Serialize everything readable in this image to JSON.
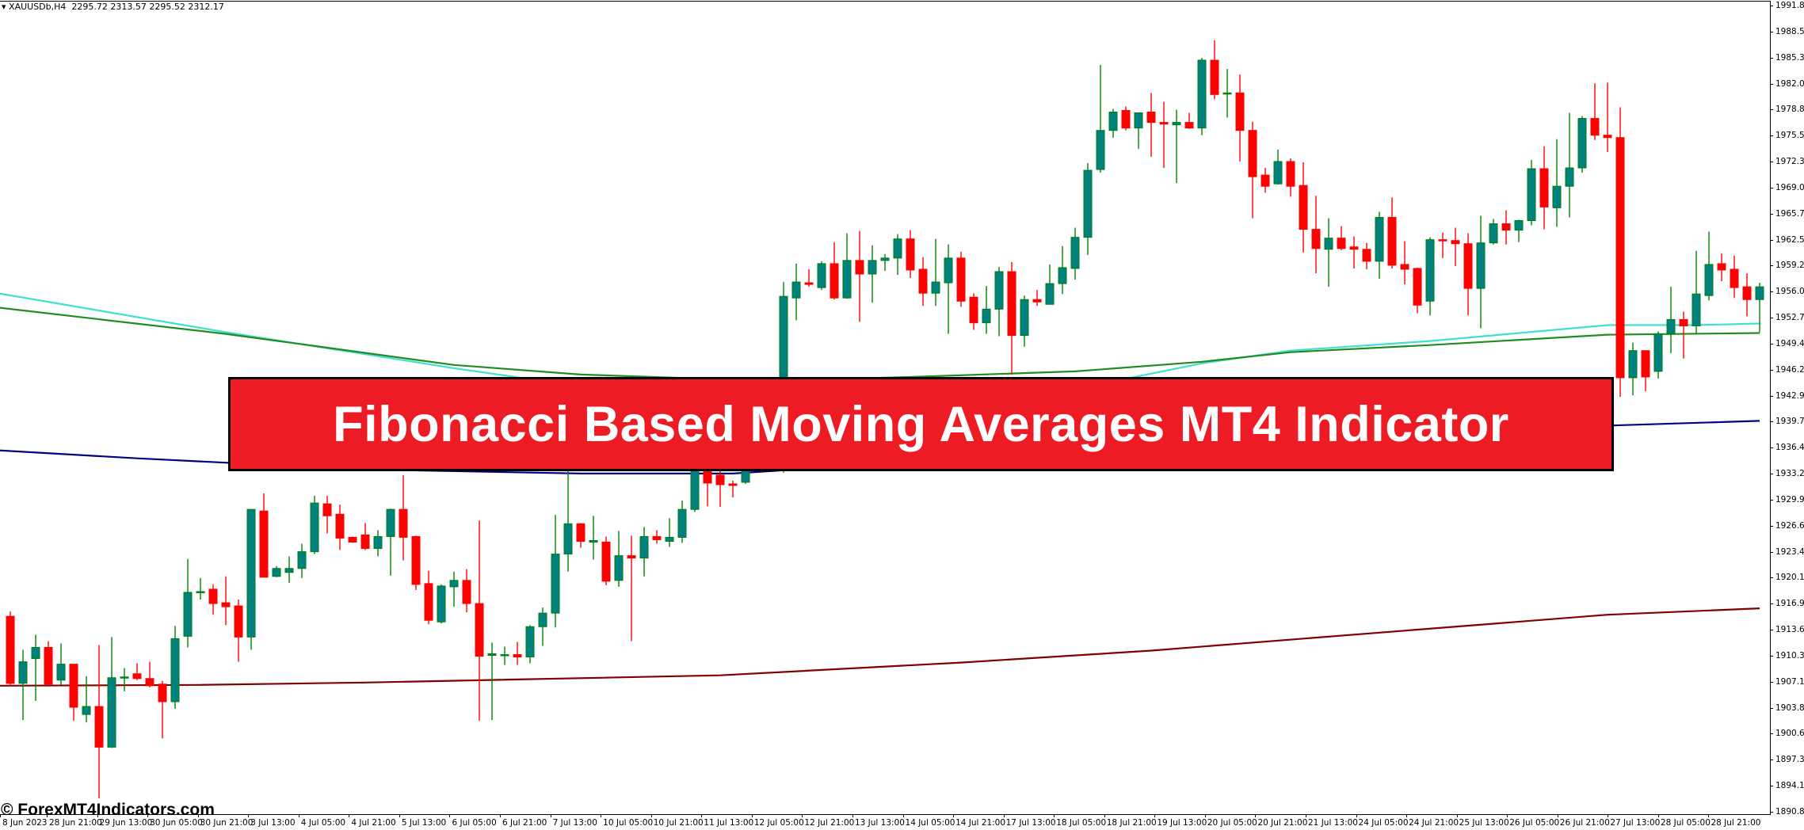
{
  "header": {
    "symbol_menu_icon": "triangle-down-icon",
    "symbol": "XAUUSDb,H4",
    "ohlc": "2295.72 2313.57 2295.52 2312.17"
  },
  "banner": {
    "title": "Fibonacci Based Moving Averages MT4 Indicator"
  },
  "watermark": "© ForexMT4Indicators.com",
  "colors": {
    "background": "#FFFFFF",
    "bull_body": "#008080",
    "bull_outline": "#008000",
    "bear_body": "#FF0000",
    "banner": "#ED1C24"
  },
  "price_axis": [
    "1991.85",
    "1988.55",
    "1985.30",
    "1982.05",
    "1978.80",
    "1975.55",
    "1972.30",
    "1969.00",
    "1965.75",
    "1962.50",
    "1959.25",
    "1956.00",
    "1952.75",
    "1949.45",
    "1946.20",
    "1942.95",
    "1939.70",
    "1936.45",
    "1933.20",
    "1929.90",
    "1926.65",
    "1923.40",
    "1920.15",
    "1916.90",
    "1913.65",
    "1910.35",
    "1907.10",
    "1903.85",
    "1900.60",
    "1897.35",
    "1894.10",
    "1890.80"
  ],
  "time_axis": [
    "8 Jun 2023",
    "28 Jun 21:00",
    "29 Jun 13:00",
    "30 Jun 05:00",
    "30 Jun 21:00",
    "3 Jul 13:00",
    "4 Jul 05:00",
    "4 Jul 21:00",
    "5 Jul 13:00",
    "6 Jul 05:00",
    "6 Jul 21:00",
    "7 Jul 13:00",
    "10 Jul 05:00",
    "10 Jul 21:00",
    "11 Jul 13:00",
    "12 Jul 05:00",
    "12 Jul 21:00",
    "13 Jul 13:00",
    "14 Jul 05:00",
    "14 Jul 21:00",
    "17 Jul 13:00",
    "18 Jul 05:00",
    "18 Jul 21:00",
    "19 Jul 13:00",
    "20 Jul 05:00",
    "20 Jul 21:00",
    "21 Jul 13:00",
    "24 Jul 05:00",
    "24 Jul 21:00",
    "25 Jul 13:00",
    "26 Jul 05:00",
    "26 Jul 21:00",
    "27 Jul 13:00",
    "28 Jul 05:00",
    "28 Jul 21:00"
  ],
  "chart_data": {
    "type": "candlestick",
    "ylim": [
      1890.8,
      1991.85
    ],
    "ohlc_order": [
      "open",
      "high",
      "low",
      "close"
    ],
    "candles": [
      [
        1915.3,
        1915.9,
        1906.6,
        1906.9
      ],
      [
        1906.9,
        1911.1,
        1902.3,
        1909.6
      ],
      [
        1910.0,
        1913.0,
        1904.7,
        1911.4
      ],
      [
        1911.4,
        1912.2,
        1906.5,
        1906.8
      ],
      [
        1907.3,
        1911.9,
        1906.7,
        1909.3
      ],
      [
        1909.3,
        1909.3,
        1902.2,
        1903.9
      ],
      [
        1903.0,
        1907.8,
        1902.0,
        1904.0
      ],
      [
        1904.0,
        1911.7,
        1892.5,
        1898.9
      ],
      [
        1898.9,
        1912.7,
        1898.8,
        1907.6
      ],
      [
        1907.6,
        1908.8,
        1905.9,
        1907.7
      ],
      [
        1908.1,
        1909.4,
        1907.3,
        1907.5
      ],
      [
        1907.5,
        1909.6,
        1906.4,
        1906.6
      ],
      [
        1906.8,
        1907.2,
        1900.0,
        1904.6
      ],
      [
        1904.6,
        1914.1,
        1903.7,
        1912.5
      ],
      [
        1912.8,
        1922.5,
        1911.4,
        1918.3
      ],
      [
        1918.3,
        1920.1,
        1917.4,
        1918.4
      ],
      [
        1918.7,
        1919.3,
        1915.5,
        1916.9
      ],
      [
        1917.0,
        1920.3,
        1914.2,
        1916.5
      ],
      [
        1916.6,
        1917.4,
        1909.6,
        1912.7
      ],
      [
        1912.7,
        1928.7,
        1911.1,
        1928.7
      ],
      [
        1928.5,
        1930.7,
        1920.2,
        1920.2
      ],
      [
        1920.3,
        1921.6,
        1920.2,
        1921.3
      ],
      [
        1920.8,
        1922.8,
        1919.5,
        1921.3
      ],
      [
        1921.3,
        1924.4,
        1920.1,
        1923.4
      ],
      [
        1923.4,
        1930.4,
        1923.1,
        1929.5
      ],
      [
        1929.4,
        1930.4,
        1925.7,
        1927.9
      ],
      [
        1928.1,
        1929.3,
        1923.6,
        1925.1
      ],
      [
        1925.2,
        1925.3,
        1924.5,
        1924.6
      ],
      [
        1925.5,
        1927.0,
        1923.6,
        1923.8
      ],
      [
        1923.8,
        1926.1,
        1922.8,
        1925.3
      ],
      [
        1925.3,
        1928.8,
        1920.4,
        1928.7
      ],
      [
        1928.7,
        1933.0,
        1922.3,
        1925.2
      ],
      [
        1925.3,
        1925.4,
        1918.6,
        1919.3
      ],
      [
        1919.4,
        1921.0,
        1914.3,
        1914.8
      ],
      [
        1914.6,
        1919.3,
        1914.4,
        1919.1
      ],
      [
        1919.0,
        1920.9,
        1916.5,
        1919.8
      ],
      [
        1919.8,
        1921.2,
        1915.8,
        1916.9
      ],
      [
        1916.9,
        1927.3,
        1902.2,
        1910.3
      ],
      [
        1910.4,
        1912.0,
        1902.3,
        1910.6
      ],
      [
        1910.4,
        1911.5,
        1909.2,
        1910.5
      ],
      [
        1910.5,
        1912.1,
        1909.2,
        1910.2
      ],
      [
        1910.2,
        1914.2,
        1909.4,
        1914.0
      ],
      [
        1914.0,
        1916.4,
        1911.6,
        1915.7
      ],
      [
        1915.7,
        1928.0,
        1913.9,
        1923.1
      ],
      [
        1923.1,
        1933.5,
        1920.9,
        1926.9
      ],
      [
        1926.9,
        1927.0,
        1923.9,
        1924.7
      ],
      [
        1924.6,
        1927.9,
        1922.4,
        1924.8
      ],
      [
        1924.6,
        1925.3,
        1919.2,
        1919.7
      ],
      [
        1919.8,
        1926.0,
        1919.0,
        1922.9
      ],
      [
        1922.9,
        1925.4,
        1912.2,
        1922.6
      ],
      [
        1922.6,
        1926.5,
        1920.3,
        1925.3
      ],
      [
        1925.3,
        1926.1,
        1924.4,
        1924.9
      ],
      [
        1924.7,
        1927.6,
        1924.0,
        1925.2
      ],
      [
        1925.2,
        1929.8,
        1924.5,
        1928.7
      ],
      [
        1928.7,
        1935.5,
        1928.4,
        1934.9
      ],
      [
        1933.5,
        1935.0,
        1929.1,
        1932.0
      ],
      [
        1933.0,
        1933.5,
        1929.0,
        1931.8
      ],
      [
        1931.9,
        1932.3,
        1930.2,
        1931.7
      ],
      [
        1932.1,
        1934.5,
        1931.9,
        1934.0
      ],
      [
        1934.0,
        1936.5,
        1933.5,
        1935.5
      ],
      [
        1935.5,
        1936.0,
        1933.5,
        1935.0
      ],
      [
        1935.0,
        1957.2,
        1933.3,
        1955.4
      ],
      [
        1955.2,
        1959.5,
        1952.4,
        1957.2
      ],
      [
        1957.1,
        1958.8,
        1956.6,
        1956.9
      ],
      [
        1956.5,
        1959.8,
        1956.2,
        1959.5
      ],
      [
        1959.5,
        1962.2,
        1955.0,
        1955.2
      ],
      [
        1955.2,
        1963.3,
        1955.1,
        1959.9
      ],
      [
        1959.9,
        1963.6,
        1952.2,
        1958.2
      ],
      [
        1958.2,
        1961.8,
        1954.6,
        1959.9
      ],
      [
        1959.9,
        1960.7,
        1958.6,
        1960.2
      ],
      [
        1960.2,
        1963.2,
        1958.1,
        1962.6
      ],
      [
        1962.6,
        1963.7,
        1957.7,
        1958.7
      ],
      [
        1958.8,
        1960.3,
        1954.2,
        1955.8
      ],
      [
        1955.8,
        1962.6,
        1954.2,
        1957.2
      ],
      [
        1957.1,
        1961.9,
        1950.7,
        1960.2
      ],
      [
        1960.2,
        1961.0,
        1954.1,
        1954.8
      ],
      [
        1955.3,
        1955.8,
        1951.2,
        1952.1
      ],
      [
        1952.1,
        1956.7,
        1950.7,
        1953.8
      ],
      [
        1953.8,
        1959.1,
        1950.4,
        1958.5
      ],
      [
        1958.5,
        1959.7,
        1945.6,
        1950.5
      ],
      [
        1950.5,
        1955.5,
        1949.1,
        1955.0
      ],
      [
        1955.0,
        1956.2,
        1954.2,
        1954.7
      ],
      [
        1954.4,
        1959.4,
        1954.4,
        1957.0
      ],
      [
        1957.0,
        1961.7,
        1955.7,
        1959.0
      ],
      [
        1958.9,
        1964.0,
        1957.5,
        1962.8
      ],
      [
        1962.8,
        1972.1,
        1960.6,
        1971.2
      ],
      [
        1971.3,
        1984.4,
        1970.9,
        1976.2
      ],
      [
        1976.2,
        1978.9,
        1975.3,
        1978.5
      ],
      [
        1978.7,
        1979.2,
        1976.2,
        1976.5
      ],
      [
        1976.5,
        1978.4,
        1973.9,
        1978.4
      ],
      [
        1978.5,
        1980.9,
        1972.9,
        1977.2
      ],
      [
        1977.2,
        1979.8,
        1971.5,
        1977.0
      ],
      [
        1976.9,
        1978.8,
        1969.6,
        1977.2
      ],
      [
        1977.2,
        1978.4,
        1976.4,
        1976.5
      ],
      [
        1976.5,
        1985.3,
        1975.6,
        1985.0
      ],
      [
        1985.0,
        1987.5,
        1980.1,
        1980.7
      ],
      [
        1980.8,
        1983.9,
        1977.8,
        1980.9
      ],
      [
        1980.9,
        1983.2,
        1972.3,
        1976.2
      ],
      [
        1976.2,
        1977.3,
        1965.2,
        1970.4
      ],
      [
        1970.6,
        1971.5,
        1968.4,
        1969.2
      ],
      [
        1969.5,
        1973.8,
        1969.4,
        1972.3
      ],
      [
        1972.3,
        1972.7,
        1967.9,
        1969.2
      ],
      [
        1969.3,
        1972.2,
        1960.9,
        1963.8
      ],
      [
        1963.8,
        1968.0,
        1958.3,
        1961.4
      ],
      [
        1961.3,
        1965.2,
        1956.6,
        1962.7
      ],
      [
        1962.7,
        1964.2,
        1961.2,
        1961.4
      ],
      [
        1961.6,
        1962.9,
        1958.9,
        1961.3
      ],
      [
        1961.3,
        1962.1,
        1958.8,
        1959.8
      ],
      [
        1959.8,
        1966.0,
        1957.6,
        1965.3
      ],
      [
        1965.3,
        1967.8,
        1958.9,
        1959.3
      ],
      [
        1959.4,
        1962.3,
        1956.9,
        1958.8
      ],
      [
        1958.9,
        1959.0,
        1953.3,
        1954.3
      ],
      [
        1954.8,
        1962.8,
        1953.0,
        1962.5
      ],
      [
        1962.5,
        1963.4,
        1960.2,
        1962.4
      ],
      [
        1962.4,
        1964.0,
        1959.2,
        1962.0
      ],
      [
        1962.0,
        1963.3,
        1953.0,
        1956.4
      ],
      [
        1956.4,
        1965.5,
        1951.4,
        1962.1
      ],
      [
        1962.1,
        1965.1,
        1961.9,
        1964.5
      ],
      [
        1964.5,
        1966.2,
        1961.9,
        1963.7
      ],
      [
        1963.7,
        1965.0,
        1962.2,
        1964.9
      ],
      [
        1964.9,
        1972.5,
        1964.3,
        1971.4
      ],
      [
        1971.4,
        1974.2,
        1963.8,
        1966.6
      ],
      [
        1966.5,
        1975.1,
        1964.1,
        1969.2
      ],
      [
        1969.2,
        1978.4,
        1965.3,
        1971.5
      ],
      [
        1971.5,
        1978.0,
        1970.9,
        1977.7
      ],
      [
        1977.7,
        1982.1,
        1975.0,
        1975.6
      ],
      [
        1975.6,
        1982.2,
        1973.5,
        1975.3
      ],
      [
        1975.3,
        1979.1,
        1942.8,
        1945.2
      ],
      [
        1945.2,
        1949.6,
        1943.0,
        1948.6
      ],
      [
        1948.6,
        1948.6,
        1943.5,
        1945.3
      ],
      [
        1946.0,
        1951.0,
        1945.1,
        1950.7
      ],
      [
        1950.7,
        1956.6,
        1948.3,
        1952.5
      ],
      [
        1952.5,
        1953.5,
        1947.6,
        1951.7
      ],
      [
        1951.7,
        1961.1,
        1950.8,
        1955.7
      ],
      [
        1955.5,
        1963.5,
        1954.9,
        1959.4
      ],
      [
        1959.5,
        1960.8,
        1957.3,
        1958.7
      ],
      [
        1958.8,
        1960.5,
        1955.2,
        1956.5
      ],
      [
        1956.6,
        1958.3,
        1952.9,
        1955.0
      ],
      [
        1955.0,
        1957.1,
        1950.9,
        1956.6
      ]
    ],
    "moving_averages": [
      {
        "color": "#40E0D0",
        "points": [
          [
            -1,
            1955.8
          ],
          [
            17,
            1950.9
          ],
          [
            35,
            1946.4
          ],
          [
            50,
            1943.0
          ],
          [
            65,
            1941.5
          ],
          [
            80,
            1942.5
          ],
          [
            94,
            1947.0
          ],
          [
            101,
            1948.6
          ],
          [
            112,
            1949.8
          ],
          [
            126,
            1951.8
          ],
          [
            133,
            1951.8
          ],
          [
            138,
            1952.0
          ]
        ]
      },
      {
        "color": "#228B22",
        "points": [
          [
            -1,
            1954.0
          ],
          [
            17,
            1950.7
          ],
          [
            35,
            1946.8
          ],
          [
            45,
            1945.6
          ],
          [
            60,
            1944.8
          ],
          [
            71,
            1945.3
          ],
          [
            84,
            1946.0
          ],
          [
            94,
            1947.2
          ],
          [
            101,
            1948.4
          ],
          [
            112,
            1949.3
          ],
          [
            126,
            1950.6
          ],
          [
            138,
            1950.8
          ]
        ]
      },
      {
        "color": "#000080",
        "points": [
          [
            -1,
            1936.1
          ],
          [
            10,
            1935.1
          ],
          [
            28,
            1933.7
          ],
          [
            45,
            1933.2
          ],
          [
            57,
            1933.2
          ],
          [
            65,
            1934.0
          ],
          [
            90,
            1936.5
          ],
          [
            110,
            1938.3
          ],
          [
            126,
            1939.2
          ],
          [
            138,
            1939.8
          ]
        ]
      },
      {
        "color": "#800000",
        "points": [
          [
            -1,
            1906.6
          ],
          [
            15,
            1906.7
          ],
          [
            28,
            1907.0
          ],
          [
            56,
            1907.9
          ],
          [
            75,
            1909.5
          ],
          [
            90,
            1911.0
          ],
          [
            110,
            1913.5
          ],
          [
            126,
            1915.5
          ],
          [
            138,
            1916.3
          ]
        ]
      }
    ]
  }
}
